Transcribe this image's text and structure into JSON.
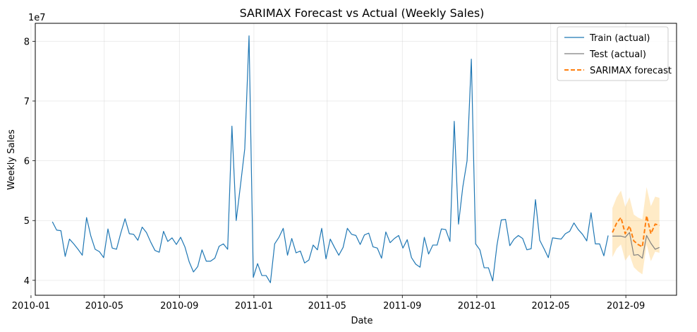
{
  "chart_data": {
    "type": "line",
    "title": "SARIMAX Forecast vs Actual (Weekly Sales)",
    "xlabel": "Date",
    "ylabel": "Weekly Sales",
    "y_offset_label": "1e7",
    "y_scale": 10000000,
    "ylim": [
      37500000,
      83000000
    ],
    "xlim": [
      "2010-01-08",
      "2012-11-23"
    ],
    "y_ticks": [
      40000000,
      50000000,
      60000000,
      70000000,
      80000000
    ],
    "y_tick_labels": [
      "4",
      "5",
      "6",
      "7",
      "8"
    ],
    "x_ticks": [
      "2010-01-01",
      "2010-05-01",
      "2010-09-01",
      "2011-01-01",
      "2011-05-01",
      "2011-09-01",
      "2012-01-01",
      "2012-05-01",
      "2012-09-01"
    ],
    "x_tick_labels": [
      "2010-01",
      "2010-05",
      "2010-09",
      "2011-01",
      "2011-05",
      "2011-09",
      "2012-01",
      "2012-05",
      "2012-09"
    ],
    "grid": true,
    "legend_position": "top-right",
    "series": [
      {
        "name": "Train (actual)",
        "color": "#1f77b4",
        "style": "solid",
        "start_date": "2010-02-05",
        "step_days": 7,
        "values": [
          49.8,
          48.4,
          48.3,
          44.0,
          46.9,
          46.1,
          45.2,
          44.2,
          50.5,
          47.4,
          45.2,
          44.8,
          43.8,
          48.6,
          45.4,
          45.2,
          47.9,
          50.3,
          47.8,
          47.7,
          46.7,
          48.9,
          48.0,
          46.4,
          45.0,
          44.7,
          48.2,
          46.5,
          47.1,
          46.0,
          47.2,
          45.6,
          43.1,
          41.4,
          42.3,
          45.1,
          43.2,
          43.2,
          43.7,
          45.7,
          46.1,
          45.2,
          65.8,
          50.0,
          55.9,
          62.0,
          80.9,
          40.5,
          42.8,
          40.8,
          40.8,
          39.6,
          46.1,
          47.2,
          48.7,
          44.2,
          47.0,
          44.6,
          44.9,
          42.9,
          43.4,
          45.9,
          45.1,
          48.7,
          43.6,
          46.9,
          45.5,
          44.2,
          45.5,
          48.7,
          47.7,
          47.5,
          46.0,
          47.6,
          47.9,
          45.6,
          45.4,
          43.7,
          48.1,
          46.3,
          47.0,
          47.5,
          45.4,
          46.8,
          43.8,
          42.7,
          42.2,
          47.2,
          44.4,
          45.9,
          45.9,
          48.6,
          48.5,
          46.5,
          66.6,
          49.4,
          55.6,
          60.0,
          77.0,
          46.1,
          45.1,
          42.1,
          42.1,
          39.9,
          45.9,
          50.1,
          50.2,
          45.8,
          46.9,
          47.5,
          47.0,
          45.1,
          45.3,
          53.5,
          46.7,
          45.3,
          43.8,
          47.1,
          47.0,
          46.9,
          47.8,
          48.2,
          49.6,
          48.5,
          47.7,
          46.6,
          51.3,
          46.1,
          46.1,
          44.1,
          47.5
        ]
      },
      {
        "name": "Test (actual)",
        "color": "#7f7f7f",
        "style": "solid",
        "start_date": "2012-08-10",
        "step_days": 7,
        "values": [
          47.4,
          47.4,
          47.4,
          47.2,
          48.0,
          44.2,
          44.3,
          43.7,
          47.5,
          46.2,
          45.2,
          45.5
        ]
      },
      {
        "name": "SARIMAX forecast",
        "color": "#ff7f0e",
        "style": "dashed",
        "start_date": "2012-08-10",
        "step_days": 7,
        "values": [
          48.0,
          49.6,
          50.5,
          47.8,
          49.1,
          46.6,
          46.0,
          45.6,
          50.8,
          47.8,
          49.4,
          49.2
        ],
        "ci_lower": [
          43.9,
          45.3,
          46.0,
          43.3,
          44.3,
          42.2,
          41.5,
          41.0,
          46.0,
          43.2,
          44.8,
          44.6
        ],
        "ci_upper": [
          52.1,
          53.9,
          55.0,
          52.3,
          53.9,
          51.0,
          50.5,
          50.2,
          55.6,
          52.4,
          54.0,
          53.8
        ],
        "ci_color": "#ffa500"
      }
    ]
  }
}
